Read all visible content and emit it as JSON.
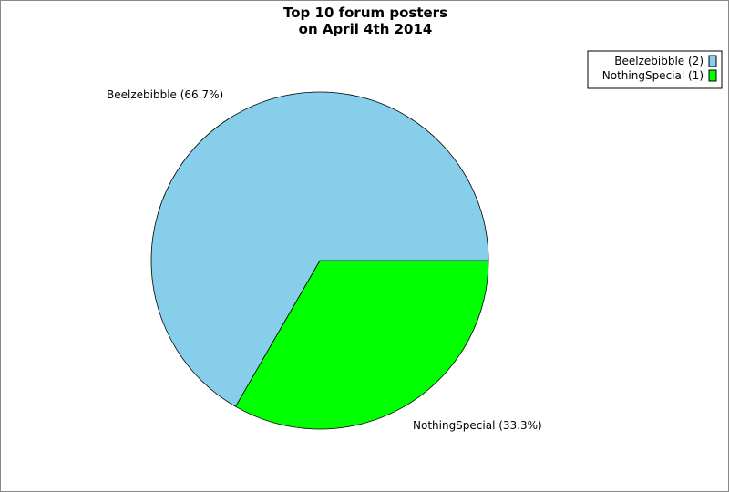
{
  "chart_data": {
    "type": "pie",
    "title": [
      "Top 10 forum posters",
      "on April 4th 2014"
    ],
    "slices": [
      {
        "name": "Beelzebibble",
        "value": 2,
        "percent": 66.7,
        "color": "#87ceeb",
        "label": "Beelzebibble (66.7%)",
        "legend": "Beelzebibble (2)"
      },
      {
        "name": "NothingSpecial",
        "value": 1,
        "percent": 33.3,
        "color": "#00ff00",
        "label": "NothingSpecial (33.3%)",
        "legend": "NothingSpecial (1)"
      }
    ],
    "legend_position": "top-right",
    "start_angle_deg": 0,
    "direction": "clockwise-from-east, last slice first"
  }
}
